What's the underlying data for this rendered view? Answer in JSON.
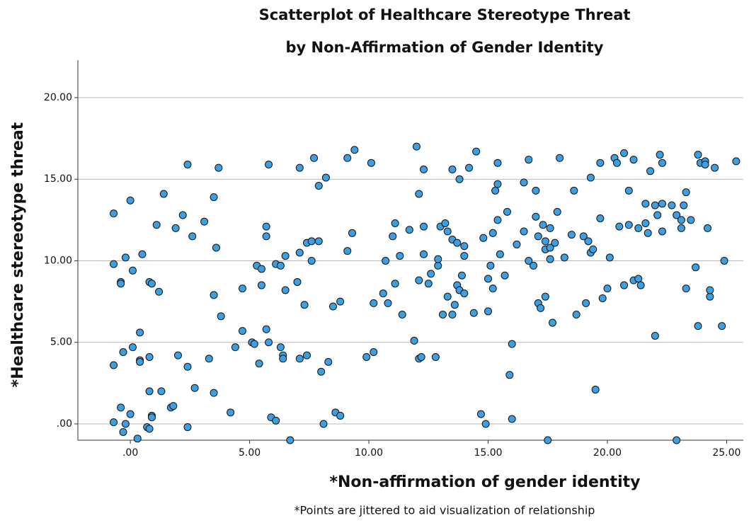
{
  "chart_data": {
    "type": "scatter",
    "title": [
      "Scatterplot of Healthcare Stereotype Threat",
      "by Non-Affirmation of Gender Identity"
    ],
    "x_label": "*Non-affirmation of gender identity",
    "y_label": "*Healthcare stereotype threat",
    "note": "*Points are jittered to aid visualization of relationship",
    "color": "#3d9fe0",
    "grid": true,
    "xlim": [
      -2.2,
      25.7
    ],
    "ylim": [
      -1,
      22.3
    ],
    "xticks": [
      {
        "value": 0,
        "label": ".00"
      },
      {
        "value": 5,
        "label": "5.00"
      },
      {
        "value": 10,
        "label": "10.00"
      },
      {
        "value": 15,
        "label": "15.00"
      },
      {
        "value": 20,
        "label": "20.00"
      },
      {
        "value": 25,
        "label": "25.00"
      }
    ],
    "yticks": [
      {
        "value": 0,
        "label": ".00"
      },
      {
        "value": 5,
        "label": "5.00"
      },
      {
        "value": 10,
        "label": "10.00"
      },
      {
        "value": 15,
        "label": "15.00"
      },
      {
        "value": 20,
        "label": "20.00"
      }
    ],
    "x": [
      -0.7,
      -0.7,
      -0.7,
      -0.7,
      -0.4,
      -0.4,
      -0.4,
      -0.3,
      -0.3,
      -0.2,
      -0.2,
      0.0,
      0.0,
      0.1,
      0.1,
      0.3,
      0.4,
      0.4,
      0.4,
      0.5,
      0.7,
      0.8,
      0.8,
      0.8,
      0.8,
      0.9,
      0.9,
      0.9,
      1.1,
      1.2,
      1.3,
      1.4,
      1.7,
      1.8,
      1.9,
      2.0,
      2.2,
      2.4,
      2.4,
      2.4,
      2.6,
      2.7,
      3.1,
      3.3,
      3.5,
      3.5,
      3.5,
      3.6,
      3.7,
      3.8,
      4.2,
      4.4,
      4.7,
      4.7,
      5.1,
      5.2,
      5.3,
      5.4,
      5.5,
      5.5,
      5.7,
      5.7,
      5.7,
      5.8,
      5.8,
      5.9,
      6.1,
      6.1,
      6.3,
      6.3,
      6.4,
      6.4,
      6.5,
      6.5,
      6.7,
      7.0,
      7.1,
      7.1,
      7.1,
      7.4,
      7.4,
      7.6,
      7.6,
      7.7,
      7.9,
      7.9,
      7.3,
      8.0,
      8.1,
      8.2,
      8.3,
      8.6,
      8.8,
      8.5,
      8.8,
      9.1,
      9.1,
      9.3,
      9.4,
      9.9,
      10.1,
      10.2,
      10.2,
      10.6,
      10.7,
      10.8,
      11.0,
      11.1,
      11.1,
      11.3,
      11.4,
      11.7,
      11.9,
      12.0,
      12.1,
      12.1,
      12.1,
      12.2,
      12.3,
      12.3,
      12.3,
      12.5,
      12.6,
      12.8,
      12.9,
      12.9,
      13.0,
      13.1,
      13.2,
      13.3,
      13.3,
      13.5,
      13.5,
      13.5,
      13.6,
      13.7,
      13.7,
      13.8,
      13.8,
      13.9,
      14.0,
      14.0,
      14.0,
      14.2,
      14.4,
      14.5,
      14.7,
      14.8,
      14.9,
      15.0,
      15.0,
      15.1,
      15.2,
      15.2,
      15.3,
      15.4,
      15.4,
      15.4,
      15.5,
      15.7,
      15.8,
      15.9,
      16.0,
      16.0,
      16.2,
      16.5,
      16.5,
      16.7,
      16.7,
      16.9,
      17.0,
      17.0,
      17.1,
      17.1,
      17.2,
      17.3,
      17.4,
      17.4,
      17.4,
      17.5,
      17.6,
      17.6,
      17.6,
      17.7,
      17.8,
      17.9,
      18.0,
      18.2,
      18.5,
      18.6,
      18.7,
      19.0,
      19.1,
      19.2,
      19.3,
      19.3,
      19.4,
      19.5,
      19.7,
      19.7,
      19.8,
      20.0,
      20.1,
      20.3,
      20.4,
      20.5,
      20.7,
      20.7,
      20.9,
      20.9,
      21.1,
      21.1,
      21.3,
      21.3,
      21.4,
      21.6,
      21.6,
      21.7,
      21.8,
      22.0,
      22.0,
      22.1,
      22.2,
      22.3,
      22.3,
      22.3,
      22.7,
      22.9,
      22.9,
      23.1,
      23.1,
      23.2,
      23.3,
      23.3,
      23.5,
      23.7,
      23.8,
      23.8,
      23.9,
      24.1,
      24.1,
      24.2,
      24.3,
      24.3,
      24.5,
      24.8,
      24.9,
      25.4
    ],
    "values": [
      9.8,
      12.9,
      3.6,
      0.1,
      1.0,
      8.7,
      8.6,
      -0.5,
      4.4,
      10.2,
      0.0,
      13.7,
      0.6,
      9.4,
      4.7,
      -0.9,
      5.6,
      3.9,
      3.8,
      10.4,
      -0.2,
      2.0,
      4.1,
      8.7,
      -0.3,
      8.6,
      0.5,
      0.4,
      12.2,
      8.1,
      2.0,
      14.1,
      1.0,
      1.1,
      12.0,
      4.2,
      12.8,
      3.5,
      -0.2,
      15.9,
      11.5,
      2.2,
      12.4,
      4.0,
      1.9,
      13.9,
      7.9,
      10.8,
      15.7,
      6.6,
      0.7,
      4.7,
      8.3,
      5.7,
      5.0,
      4.9,
      9.7,
      3.7,
      8.5,
      9.5,
      5.8,
      12.1,
      11.5,
      15.9,
      5.0,
      0.4,
      9.8,
      0.2,
      9.7,
      4.7,
      4.2,
      4.0,
      8.2,
      10.3,
      -1.0,
      8.7,
      4.0,
      10.5,
      15.7,
      11.1,
      4.2,
      10.0,
      11.2,
      16.3,
      14.6,
      11.2,
      7.3,
      3.2,
      0.0,
      15.1,
      3.8,
      0.7,
      0.5,
      7.2,
      7.5,
      10.6,
      16.3,
      11.7,
      16.8,
      4.1,
      16.0,
      7.4,
      4.4,
      8.0,
      10.0,
      7.4,
      11.5,
      8.6,
      12.3,
      10.3,
      6.7,
      11.9,
      5.1,
      17.0,
      14.1,
      8.8,
      4.0,
      4.1,
      12.1,
      15.6,
      10.4,
      8.6,
      9.2,
      4.1,
      9.7,
      10.1,
      12.1,
      6.7,
      12.3,
      11.8,
      7.8,
      11.3,
      15.6,
      6.7,
      7.3,
      8.5,
      11.1,
      8.2,
      15.0,
      9.1,
      10.3,
      8.0,
      10.9,
      15.7,
      6.8,
      16.7,
      0.6,
      11.4,
      0.0,
      6.9,
      8.9,
      9.7,
      11.7,
      8.3,
      14.3,
      14.7,
      12.5,
      16.0,
      10.4,
      9.1,
      13.0,
      3.0,
      0.3,
      4.9,
      11.0,
      14.8,
      11.8,
      16.2,
      10.0,
      9.7,
      14.3,
      12.7,
      7.4,
      11.5,
      7.1,
      12.2,
      10.7,
      7.8,
      11.2,
      -1.0,
      10.1,
      10.8,
      12.0,
      6.2,
      11.1,
      13.0,
      16.3,
      10.2,
      11.6,
      14.3,
      6.7,
      11.5,
      7.4,
      11.2,
      10.5,
      15.1,
      10.7,
      2.1,
      12.6,
      16.0,
      7.7,
      8.3,
      10.2,
      16.3,
      16.0,
      12.1,
      16.6,
      8.5,
      14.3,
      12.2,
      16.2,
      8.8,
      8.9,
      12.0,
      8.5,
      12.3,
      13.5,
      11.7,
      15.5,
      13.4,
      5.4,
      12.8,
      16.5,
      11.8,
      13.5,
      16.0,
      13.4,
      12.8,
      -1.0,
      12.5,
      12.0,
      13.4,
      8.3,
      14.2,
      12.5,
      9.6,
      16.5,
      6.0,
      16.0,
      16.1,
      15.9,
      12.0,
      7.8,
      8.2,
      15.7,
      6.0,
      10.0,
      16.1
    ]
  }
}
